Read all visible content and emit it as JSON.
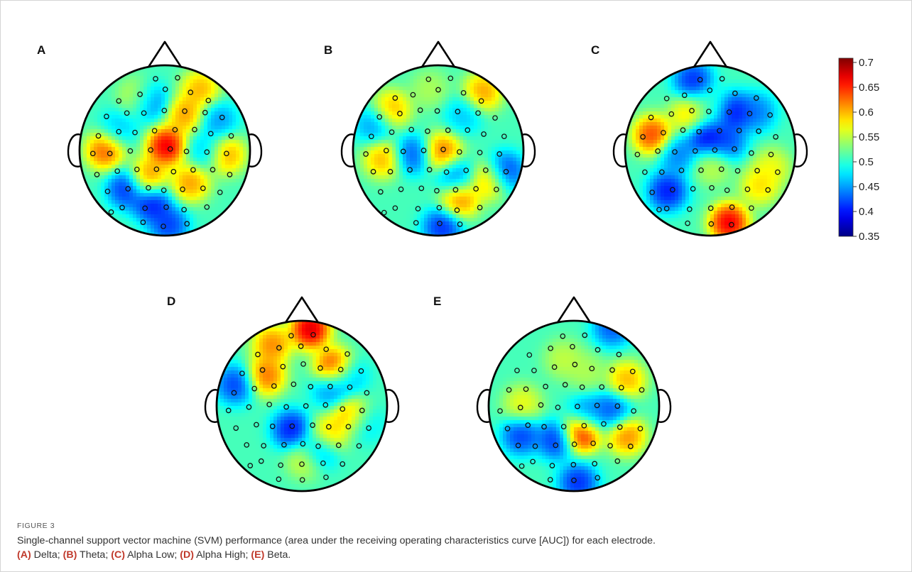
{
  "figure": {
    "label": "FIGURE 3",
    "caption": {
      "intro": "Single-channel support vector machine (SVM) performance (area under the receiving operating characteristics curve [AUC]) for each electrode.",
      "parts": [
        {
          "tag": "(A)",
          "text": " Delta; "
        },
        {
          "tag": "(B)",
          "text": " Theta; "
        },
        {
          "tag": "(C)",
          "text": " Alpha Low; "
        },
        {
          "tag": "(D)",
          "text": " Alpha High; "
        },
        {
          "tag": "(E)",
          "text": " Beta."
        }
      ]
    }
  },
  "chart_data": {
    "type": "heatmap",
    "colormap": "jet",
    "colorbar": {
      "min": 0.35,
      "max": 0.7,
      "ticks": [
        "0.7",
        "0.65",
        "0.6",
        "0.55",
        "0.5",
        "0.45",
        "0.4",
        "0.35"
      ],
      "tick_values": [
        0.7,
        0.65,
        0.6,
        0.55,
        0.5,
        0.45,
        0.4,
        0.35
      ]
    },
    "panels": [
      {
        "letter": "A",
        "hotspots": [
          {
            "u": 0.02,
            "v": -0.05,
            "val": 0.71
          },
          {
            "u": -0.7,
            "v": 0.0,
            "val": 0.66
          },
          {
            "u": 0.72,
            "v": 0.05,
            "val": 0.63
          },
          {
            "u": 0.42,
            "v": -0.72,
            "val": 0.62
          },
          {
            "u": -0.2,
            "v": 0.32,
            "val": 0.64
          },
          {
            "u": 0.3,
            "v": 0.38,
            "val": 0.63
          },
          {
            "u": -0.3,
            "v": -0.62,
            "val": 0.6
          },
          {
            "u": 0.25,
            "v": -0.42,
            "val": 0.63
          },
          {
            "u": -0.2,
            "v": -0.58,
            "val": 0.38
          },
          {
            "u": -0.45,
            "v": 0.45,
            "val": 0.38
          },
          {
            "u": -0.15,
            "v": 0.62,
            "val": 0.37
          },
          {
            "u": 0.05,
            "v": 0.88,
            "val": 0.39
          },
          {
            "u": 0.62,
            "v": -0.35,
            "val": 0.43
          },
          {
            "u": -0.55,
            "v": -0.25,
            "val": 0.45
          },
          {
            "u": 0.48,
            "v": 0.0,
            "val": 0.45
          }
        ]
      },
      {
        "letter": "B",
        "hotspots": [
          {
            "u": 0.05,
            "v": 0.02,
            "val": 0.65
          },
          {
            "u": 0.25,
            "v": 0.58,
            "val": 0.64
          },
          {
            "u": 0.52,
            "v": -0.68,
            "val": 0.63
          },
          {
            "u": -0.65,
            "v": 0.1,
            "val": 0.62
          },
          {
            "u": -0.55,
            "v": -0.48,
            "val": 0.62
          },
          {
            "u": 0.6,
            "v": 0.35,
            "val": 0.62
          },
          {
            "u": 0.3,
            "v": -0.42,
            "val": 0.45
          },
          {
            "u": -0.3,
            "v": 0.05,
            "val": 0.4
          },
          {
            "u": 0.78,
            "v": 0.25,
            "val": 0.38
          },
          {
            "u": 0.05,
            "v": 0.9,
            "val": 0.38
          },
          {
            "u": -0.75,
            "v": -0.3,
            "val": 0.43
          },
          {
            "u": 0.2,
            "v": 0.3,
            "val": 0.42
          },
          {
            "u": -0.1,
            "v": -0.72,
            "val": 0.55
          }
        ]
      },
      {
        "letter": "C",
        "hotspots": [
          {
            "u": -0.68,
            "v": -0.18,
            "val": 0.67
          },
          {
            "u": 0.22,
            "v": 0.85,
            "val": 0.71
          },
          {
            "u": 0.58,
            "v": 0.42,
            "val": 0.6
          },
          {
            "u": 0.72,
            "v": 0.2,
            "val": 0.58
          },
          {
            "u": -0.25,
            "v": -0.42,
            "val": 0.6
          },
          {
            "u": 0.02,
            "v": 0.18,
            "val": 0.56
          },
          {
            "u": -0.2,
            "v": -0.82,
            "val": 0.38
          },
          {
            "u": -0.5,
            "v": 0.48,
            "val": 0.37
          },
          {
            "u": -0.05,
            "v": -0.15,
            "val": 0.36
          },
          {
            "u": 0.28,
            "v": -0.45,
            "val": 0.37
          },
          {
            "u": 0.2,
            "v": -0.1,
            "val": 0.4
          },
          {
            "u": 0.55,
            "v": -0.45,
            "val": 0.42
          },
          {
            "u": -0.38,
            "v": 0.05,
            "val": 0.42
          },
          {
            "u": 0.0,
            "v": -0.52,
            "val": 0.5
          }
        ]
      },
      {
        "letter": "D",
        "hotspots": [
          {
            "u": 0.1,
            "v": -0.9,
            "val": 0.72
          },
          {
            "u": 0.38,
            "v": -0.45,
            "val": 0.69
          },
          {
            "u": -0.35,
            "v": -0.72,
            "val": 0.64
          },
          {
            "u": -0.42,
            "v": -0.35,
            "val": 0.65
          },
          {
            "u": 0.58,
            "v": 0.12,
            "val": 0.64
          },
          {
            "u": 0.3,
            "v": 0.35,
            "val": 0.62
          },
          {
            "u": 0.05,
            "v": 0.62,
            "val": 0.58
          },
          {
            "u": -0.78,
            "v": -0.25,
            "val": 0.39
          },
          {
            "u": -0.12,
            "v": 0.28,
            "val": 0.37
          },
          {
            "u": 0.35,
            "v": -0.2,
            "val": 0.42
          },
          {
            "u": 0.2,
            "v": 0.52,
            "val": 0.4
          },
          {
            "u": 0.55,
            "v": -0.35,
            "val": 0.44
          },
          {
            "u": 0.72,
            "v": 0.2,
            "val": 0.45
          }
        ]
      },
      {
        "letter": "E",
        "hotspots": [
          {
            "u": 0.08,
            "v": 0.32,
            "val": 0.71
          },
          {
            "u": 0.62,
            "v": -0.3,
            "val": 0.62
          },
          {
            "u": 0.62,
            "v": 0.35,
            "val": 0.64
          },
          {
            "u": -0.6,
            "v": -0.02,
            "val": 0.58
          },
          {
            "u": -0.12,
            "v": -0.55,
            "val": 0.56
          },
          {
            "u": 0.15,
            "v": -0.4,
            "val": 0.55
          },
          {
            "u": 0.45,
            "v": -0.92,
            "val": 0.4
          },
          {
            "u": -0.2,
            "v": 0.4,
            "val": 0.38
          },
          {
            "u": 0.05,
            "v": 0.9,
            "val": 0.38
          },
          {
            "u": -0.62,
            "v": 0.35,
            "val": 0.39
          },
          {
            "u": 0.45,
            "v": 0.05,
            "val": 0.4
          },
          {
            "u": 0.15,
            "v": 0.1,
            "val": 0.42
          }
        ]
      }
    ],
    "electrodes": [
      [
        -0.55,
        -0.63
      ],
      [
        -0.3,
        -0.7
      ],
      [
        0.0,
        -0.75
      ],
      [
        0.3,
        -0.7
      ],
      [
        0.55,
        -0.63
      ],
      [
        -0.72,
        -0.42
      ],
      [
        -0.48,
        -0.45
      ],
      [
        -0.24,
        -0.48
      ],
      [
        0.0,
        -0.5
      ],
      [
        0.24,
        -0.48
      ],
      [
        0.48,
        -0.45
      ],
      [
        0.72,
        -0.42
      ],
      [
        -0.82,
        -0.18
      ],
      [
        -0.58,
        -0.22
      ],
      [
        -0.35,
        -0.24
      ],
      [
        -0.12,
        -0.25
      ],
      [
        0.12,
        -0.25
      ],
      [
        0.35,
        -0.24
      ],
      [
        0.58,
        -0.22
      ],
      [
        0.82,
        -0.18
      ],
      [
        -0.9,
        0.05
      ],
      [
        -0.66,
        0.02
      ],
      [
        -0.42,
        0.0
      ],
      [
        -0.18,
        0.0
      ],
      [
        0.05,
        0.0
      ],
      [
        0.28,
        0.0
      ],
      [
        0.52,
        0.02
      ],
      [
        0.75,
        0.05
      ],
      [
        -0.82,
        0.28
      ],
      [
        -0.58,
        0.25
      ],
      [
        -0.35,
        0.24
      ],
      [
        -0.12,
        0.25
      ],
      [
        0.12,
        0.25
      ],
      [
        0.35,
        0.24
      ],
      [
        0.58,
        0.25
      ],
      [
        0.82,
        0.28
      ],
      [
        -0.7,
        0.5
      ],
      [
        -0.46,
        0.48
      ],
      [
        -0.22,
        0.48
      ],
      [
        0.0,
        0.48
      ],
      [
        0.22,
        0.48
      ],
      [
        0.46,
        0.48
      ],
      [
        0.7,
        0.5
      ],
      [
        -0.52,
        0.7
      ],
      [
        -0.25,
        0.72
      ],
      [
        0.0,
        0.72
      ],
      [
        0.25,
        0.72
      ],
      [
        0.52,
        0.7
      ],
      [
        -0.28,
        0.9
      ],
      [
        0.0,
        0.92
      ],
      [
        0.28,
        0.9
      ],
      [
        -0.12,
        -0.88
      ],
      [
        0.14,
        -0.88
      ],
      [
        -0.65,
        0.75
      ]
    ]
  }
}
